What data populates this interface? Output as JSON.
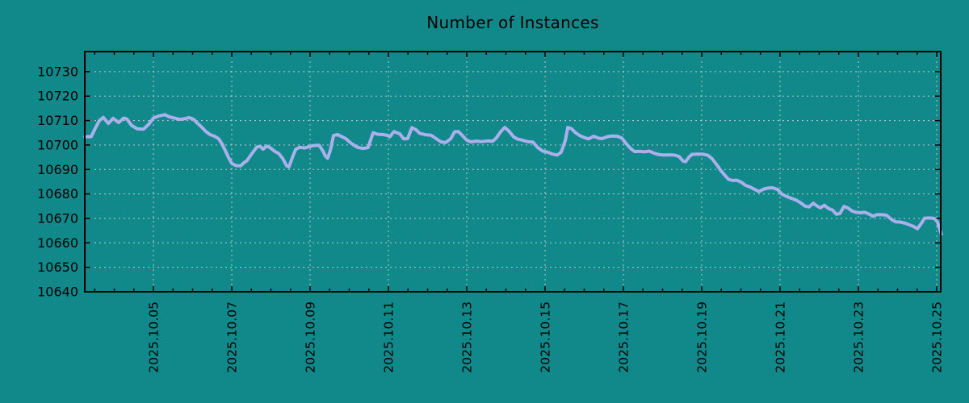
{
  "title": "Number of Instances",
  "colors": {
    "background": "#118889",
    "series_line": "#aab0ec",
    "grid": "#ccd2d2",
    "axis": "#000000",
    "text": "#000000"
  },
  "chart_data": {
    "type": "line",
    "title": "Number of Instances",
    "xlabel": "",
    "ylabel": "",
    "grid": true,
    "legend": "none",
    "ylim": [
      10640,
      10738.2
    ],
    "xlim_day_of_2025_10": [
      3.247,
      25.103
    ],
    "y_ticks": [
      10640,
      10650,
      10660,
      10670,
      10680,
      10690,
      10700,
      10710,
      10720,
      10730
    ],
    "x_minor_tick_step_days": 0.5,
    "x_ticks": [
      {
        "d": 5,
        "label": "2025.10.05"
      },
      {
        "d": 7,
        "label": "2025.10.07"
      },
      {
        "d": 9,
        "label": "2025.10.09"
      },
      {
        "d": 11,
        "label": "2025.10.11"
      },
      {
        "d": 13,
        "label": "2025.10.13"
      },
      {
        "d": 15,
        "label": "2025.10.15"
      },
      {
        "d": 17,
        "label": "2025.10.17"
      },
      {
        "d": 19,
        "label": "2025.10.19"
      },
      {
        "d": 21,
        "label": "2025.10.21"
      },
      {
        "d": 23,
        "label": "2025.10.23"
      },
      {
        "d": 25,
        "label": "2025.10.25"
      }
    ],
    "points": [
      [
        3.25,
        10703.4
      ],
      [
        3.41,
        10703.4
      ],
      [
        3.52,
        10707.0
      ],
      [
        3.62,
        10710.0
      ],
      [
        3.72,
        10711.3
      ],
      [
        3.85,
        10708.8
      ],
      [
        3.97,
        10710.9
      ],
      [
        4.11,
        10709.2
      ],
      [
        4.24,
        10711.0
      ],
      [
        4.32,
        10710.7
      ],
      [
        4.44,
        10708.0
      ],
      [
        4.59,
        10706.6
      ],
      [
        4.75,
        10706.5
      ],
      [
        4.88,
        10708.5
      ],
      [
        5.0,
        10711.0
      ],
      [
        5.14,
        10711.9
      ],
      [
        5.29,
        10712.4
      ],
      [
        5.41,
        10711.5
      ],
      [
        5.56,
        10710.9
      ],
      [
        5.66,
        10710.5
      ],
      [
        5.78,
        10710.7
      ],
      [
        5.91,
        10711.2
      ],
      [
        6.03,
        10710.5
      ],
      [
        6.13,
        10708.8
      ],
      [
        6.24,
        10707.2
      ],
      [
        6.34,
        10705.5
      ],
      [
        6.44,
        10704.3
      ],
      [
        6.57,
        10703.5
      ],
      [
        6.67,
        10702.5
      ],
      [
        6.75,
        10700.5
      ],
      [
        6.84,
        10697.5
      ],
      [
        6.92,
        10694.8
      ],
      [
        7.0,
        10692.5
      ],
      [
        7.1,
        10691.6
      ],
      [
        7.23,
        10691.5
      ],
      [
        7.31,
        10692.8
      ],
      [
        7.39,
        10693.6
      ],
      [
        7.47,
        10695.5
      ],
      [
        7.56,
        10697.5
      ],
      [
        7.64,
        10699.2
      ],
      [
        7.72,
        10699.5
      ],
      [
        7.8,
        10698.3
      ],
      [
        7.89,
        10699.6
      ],
      [
        7.99,
        10698.8
      ],
      [
        8.09,
        10697.5
      ],
      [
        8.2,
        10696.5
      ],
      [
        8.3,
        10694.5
      ],
      [
        8.4,
        10691.5
      ],
      [
        8.46,
        10691.0
      ],
      [
        8.55,
        10695.0
      ],
      [
        8.63,
        10698.2
      ],
      [
        8.73,
        10699.1
      ],
      [
        8.86,
        10698.8
      ],
      [
        8.98,
        10699.3
      ],
      [
        9.1,
        10699.8
      ],
      [
        9.23,
        10699.9
      ],
      [
        9.33,
        10697.5
      ],
      [
        9.39,
        10695.5
      ],
      [
        9.45,
        10694.6
      ],
      [
        9.52,
        10698.0
      ],
      [
        9.6,
        10703.9
      ],
      [
        9.7,
        10704.3
      ],
      [
        9.8,
        10703.5
      ],
      [
        9.91,
        10702.6
      ],
      [
        10.01,
        10701.2
      ],
      [
        10.11,
        10700.0
      ],
      [
        10.22,
        10699.0
      ],
      [
        10.36,
        10698.6
      ],
      [
        10.48,
        10699.0
      ],
      [
        10.61,
        10705.0
      ],
      [
        10.73,
        10704.4
      ],
      [
        10.86,
        10704.3
      ],
      [
        10.96,
        10704.0
      ],
      [
        11.04,
        10703.4
      ],
      [
        11.14,
        10705.5
      ],
      [
        11.29,
        10704.6
      ],
      [
        11.39,
        10702.5
      ],
      [
        11.49,
        10702.6
      ],
      [
        11.6,
        10707.1
      ],
      [
        11.7,
        10706.3
      ],
      [
        11.8,
        10704.8
      ],
      [
        11.95,
        10704.2
      ],
      [
        12.09,
        10704.0
      ],
      [
        12.22,
        10702.6
      ],
      [
        12.34,
        10701.3
      ],
      [
        12.46,
        10701.0
      ],
      [
        12.59,
        10702.5
      ],
      [
        12.69,
        10705.4
      ],
      [
        12.79,
        10705.5
      ],
      [
        12.88,
        10704.0
      ],
      [
        13.0,
        10702.0
      ],
      [
        13.1,
        10701.3
      ],
      [
        13.25,
        10701.6
      ],
      [
        13.39,
        10701.4
      ],
      [
        13.54,
        10701.7
      ],
      [
        13.66,
        10701.5
      ],
      [
        13.76,
        10703.0
      ],
      [
        13.87,
        10705.5
      ],
      [
        13.97,
        10707.2
      ],
      [
        14.07,
        10705.8
      ],
      [
        14.2,
        10703.3
      ],
      [
        14.3,
        10702.4
      ],
      [
        14.42,
        10702.0
      ],
      [
        14.55,
        10701.4
      ],
      [
        14.69,
        10701.2
      ],
      [
        14.81,
        10699.0
      ],
      [
        14.94,
        10697.5
      ],
      [
        15.06,
        10697.1
      ],
      [
        15.19,
        10696.3
      ],
      [
        15.31,
        10695.9
      ],
      [
        15.41,
        10697.0
      ],
      [
        15.52,
        10702.0
      ],
      [
        15.58,
        10707.2
      ],
      [
        15.68,
        10706.6
      ],
      [
        15.78,
        10705.0
      ],
      [
        15.89,
        10703.8
      ],
      [
        16.01,
        10703.0
      ],
      [
        16.11,
        10702.5
      ],
      [
        16.24,
        10703.6
      ],
      [
        16.36,
        10702.8
      ],
      [
        16.46,
        10702.6
      ],
      [
        16.59,
        10703.4
      ],
      [
        16.71,
        10703.7
      ],
      [
        16.84,
        10703.6
      ],
      [
        16.96,
        10702.8
      ],
      [
        17.08,
        10700.4
      ],
      [
        17.19,
        10698.5
      ],
      [
        17.29,
        10697.3
      ],
      [
        17.41,
        10697.4
      ],
      [
        17.54,
        10697.2
      ],
      [
        17.66,
        10697.5
      ],
      [
        17.79,
        10696.6
      ],
      [
        17.91,
        10696.1
      ],
      [
        18.03,
        10695.9
      ],
      [
        18.18,
        10696.0
      ],
      [
        18.3,
        10695.9
      ],
      [
        18.42,
        10695.3
      ],
      [
        18.53,
        10693.4
      ],
      [
        18.59,
        10693.2
      ],
      [
        18.67,
        10695.0
      ],
      [
        18.75,
        10696.2
      ],
      [
        18.88,
        10696.3
      ],
      [
        19.02,
        10696.3
      ],
      [
        19.16,
        10695.8
      ],
      [
        19.27,
        10694.3
      ],
      [
        19.39,
        10691.8
      ],
      [
        19.49,
        10689.5
      ],
      [
        19.6,
        10687.5
      ],
      [
        19.68,
        10686.0
      ],
      [
        19.78,
        10685.5
      ],
      [
        19.89,
        10685.6
      ],
      [
        20.01,
        10684.8
      ],
      [
        20.11,
        10683.6
      ],
      [
        20.24,
        10682.8
      ],
      [
        20.36,
        10681.8
      ],
      [
        20.46,
        10681.0
      ],
      [
        20.59,
        10682.0
      ],
      [
        20.69,
        10682.4
      ],
      [
        20.81,
        10682.5
      ],
      [
        20.94,
        10681.8
      ],
      [
        21.04,
        10680.0
      ],
      [
        21.16,
        10679.0
      ],
      [
        21.29,
        10678.2
      ],
      [
        21.41,
        10677.5
      ],
      [
        21.54,
        10676.2
      ],
      [
        21.64,
        10675.0
      ],
      [
        21.74,
        10674.7
      ],
      [
        21.85,
        10676.2
      ],
      [
        21.95,
        10675.0
      ],
      [
        22.03,
        10674.3
      ],
      [
        22.13,
        10675.4
      ],
      [
        22.24,
        10674.0
      ],
      [
        22.34,
        10673.4
      ],
      [
        22.44,
        10671.7
      ],
      [
        22.53,
        10672.0
      ],
      [
        22.63,
        10674.9
      ],
      [
        22.73,
        10674.3
      ],
      [
        22.84,
        10673.0
      ],
      [
        22.94,
        10672.5
      ],
      [
        23.06,
        10672.3
      ],
      [
        23.16,
        10672.5
      ],
      [
        23.27,
        10671.8
      ],
      [
        23.37,
        10670.9
      ],
      [
        23.47,
        10671.5
      ],
      [
        23.6,
        10671.5
      ],
      [
        23.72,
        10671.3
      ],
      [
        23.85,
        10669.5
      ],
      [
        23.95,
        10668.6
      ],
      [
        24.07,
        10668.5
      ],
      [
        24.2,
        10668.0
      ],
      [
        24.3,
        10667.4
      ],
      [
        24.4,
        10666.8
      ],
      [
        24.51,
        10665.8
      ],
      [
        24.61,
        10668.0
      ],
      [
        24.69,
        10670.1
      ],
      [
        24.81,
        10670.2
      ],
      [
        24.94,
        10670.0
      ],
      [
        25.02,
        10668.5
      ],
      [
        25.08,
        10665.5
      ],
      [
        25.12,
        10663.6
      ]
    ]
  }
}
